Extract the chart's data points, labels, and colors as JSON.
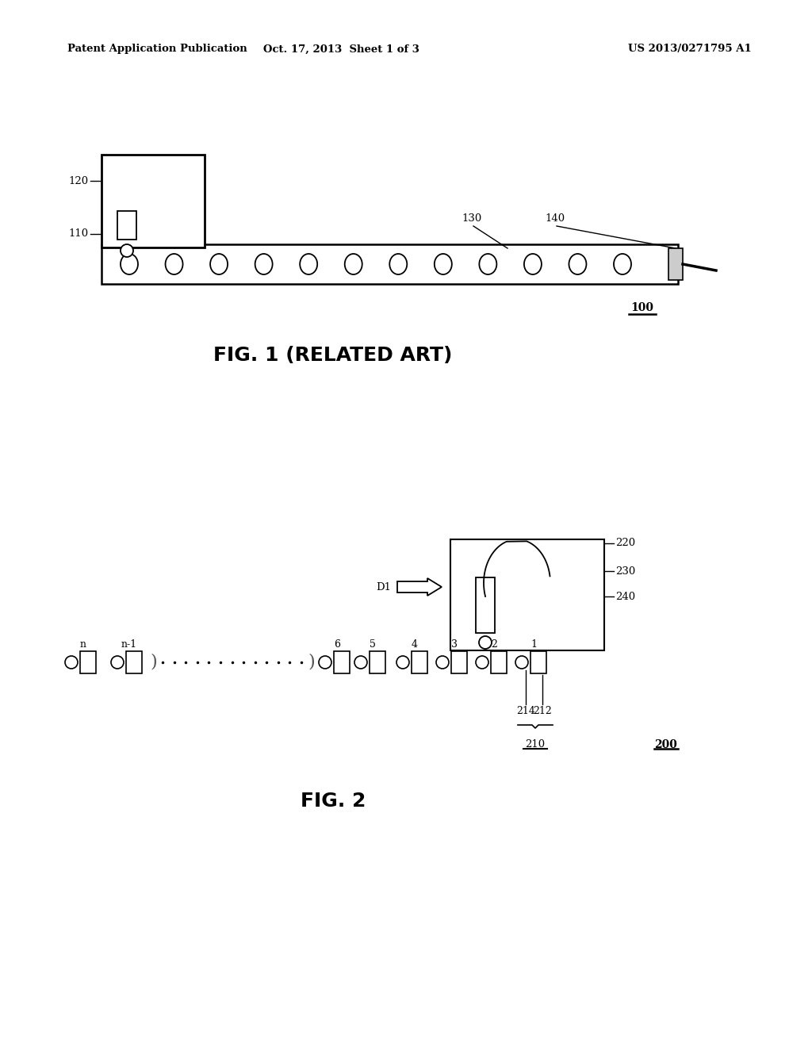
{
  "bg_color": "#ffffff",
  "header_left": "Patent Application Publication",
  "header_center": "Oct. 17, 2013  Sheet 1 of 3",
  "header_right": "US 2013/0271795 A1",
  "fig1_title": "FIG. 1 (RELATED ART)",
  "fig2_title": "FIG. 2",
  "fig1_label": "100",
  "fig2_label": "200"
}
